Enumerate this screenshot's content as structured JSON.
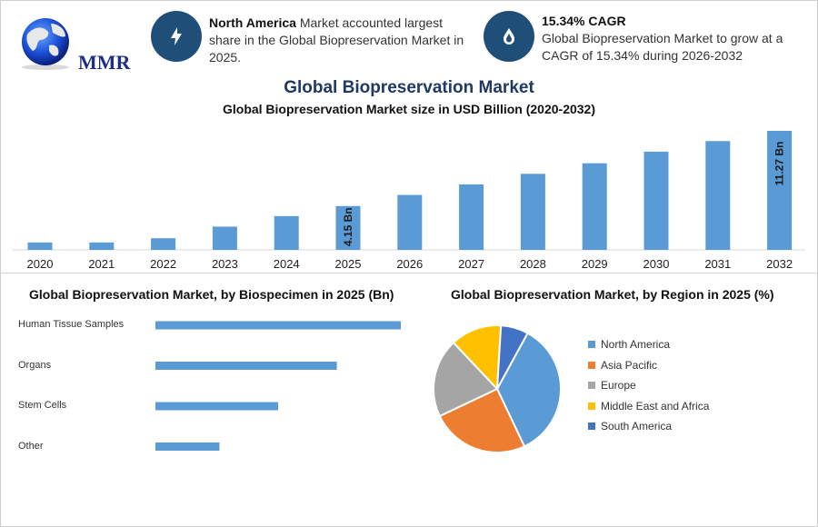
{
  "brand": {
    "logo_text": "MMR"
  },
  "kpis": [
    {
      "icon": "lightning-icon",
      "bold": "North America",
      "text": " Market accounted largest share in the Global Biopreservation Market in 2025."
    },
    {
      "icon": "drop-icon",
      "bold": "15.34% CAGR",
      "text": "Global Biopreservation Market to grow at a CAGR of 15.34% during 2026-2032"
    }
  ],
  "title": "Global Biopreservation Market",
  "subtitle": "Global Biopreservation Market size in USD Billion (2020-2032)",
  "colors": {
    "bar": "#5b9bd5",
    "accent": "#1f4e79",
    "title": "#1f3864"
  },
  "chart_data": [
    {
      "type": "bar",
      "title": "Global Biopreservation Market size in USD Billion (2020-2032)",
      "categories": [
        "2020",
        "2021",
        "2022",
        "2023",
        "2024",
        "2025",
        "2026",
        "2027",
        "2028",
        "2029",
        "2030",
        "2031",
        "2032"
      ],
      "values": [
        0.7,
        0.7,
        1.1,
        2.2,
        3.2,
        4.15,
        5.2,
        6.2,
        7.2,
        8.2,
        9.3,
        10.3,
        11.27
      ],
      "data_labels": {
        "2025": "4.15 Bn",
        "2032": "11.27 Bn"
      },
      "ylim": [
        0,
        11.27
      ]
    },
    {
      "type": "bar",
      "orientation": "horizontal",
      "title": "Global Biopreservation Market, by Biospecimen in 2025 (Bn)",
      "categories": [
        "Human Tissue Samples",
        "Organs",
        "Stem Cells",
        "Other"
      ],
      "values": [
        2.3,
        1.7,
        1.15,
        0.6
      ],
      "xlim": [
        0,
        2.3
      ]
    },
    {
      "type": "pie",
      "title": "Global Biopreservation Market, by Region in 2025 (%)",
      "categories": [
        "North America",
        "Asia Pacific",
        "Europe",
        "Middle East and Africa",
        "South America"
      ],
      "values": [
        35,
        25,
        20,
        13,
        7
      ],
      "colors": [
        "#5b9bd5",
        "#ed7d31",
        "#a5a5a5",
        "#ffc000",
        "#4472c4"
      ],
      "legend": "right"
    }
  ]
}
